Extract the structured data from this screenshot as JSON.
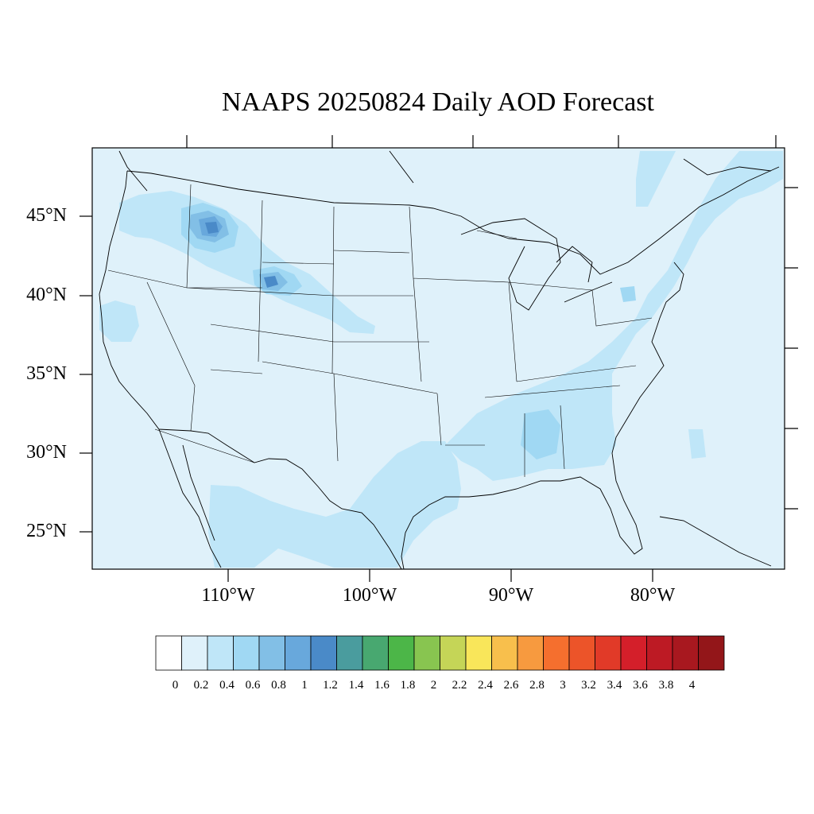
{
  "map": {
    "title": "NAAPS 20250824 Daily AOD Forecast",
    "lat_labels": [
      "45°N",
      "40°N",
      "35°N",
      "30°N",
      "25°N"
    ],
    "lon_labels": [
      "110°W",
      "100°W",
      "90°W",
      "80°W"
    ],
    "region": "Contiguous United States",
    "background_aod_color": "#dff1fa"
  },
  "colorbar": {
    "labels": [
      "0",
      "0.2",
      "0.4",
      "0.6",
      "0.8",
      "1",
      "1.2",
      "1.4",
      "1.6",
      "1.8",
      "2",
      "2.2",
      "2.4",
      "2.6",
      "2.8",
      "3",
      "3.2",
      "3.4",
      "3.6",
      "3.8",
      "4"
    ],
    "colors": [
      "#ffffff",
      "#dff1fa",
      "#bfe6f8",
      "#a0d8f3",
      "#82bfe6",
      "#68a8dc",
      "#4a8ac8",
      "#4a9c9e",
      "#48a870",
      "#4cb648",
      "#88c550",
      "#c5d557",
      "#f9e65a",
      "#f8bf4c",
      "#f79a3f",
      "#f56f2e",
      "#ec5429",
      "#e13a28",
      "#d41f2a",
      "#bd1a24",
      "#a8181f",
      "#931619"
    ]
  }
}
